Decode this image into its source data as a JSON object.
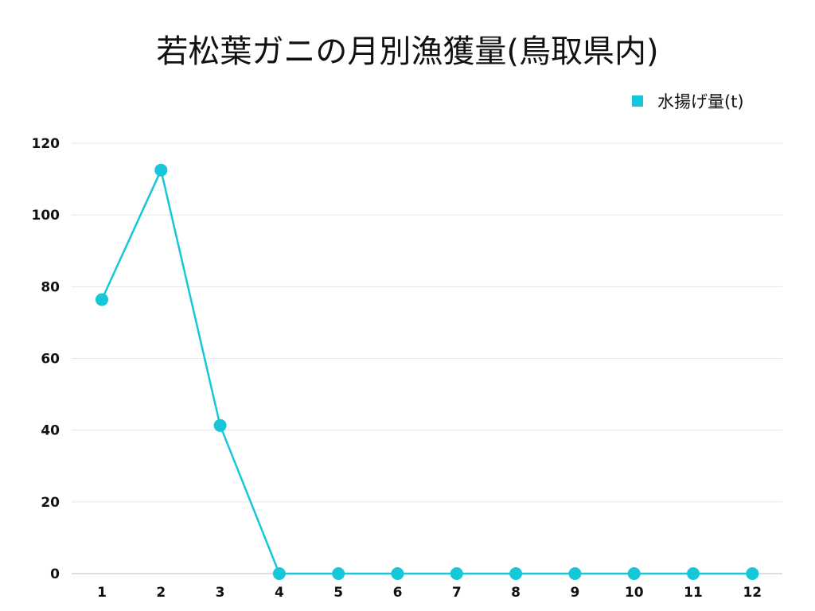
{
  "chart_data": {
    "type": "line",
    "title": "若松葉ガニの月別漁獲量(鳥取県内)",
    "xlabel": "",
    "ylabel": "",
    "categories": [
      "1",
      "2",
      "3",
      "4",
      "5",
      "6",
      "7",
      "8",
      "9",
      "10",
      "11",
      "12"
    ],
    "series": [
      {
        "name": "水揚げ量(t)",
        "color": "#16c7d9",
        "values": [
          76.4,
          112.5,
          41.3,
          0,
          0,
          0,
          0,
          0,
          0,
          0,
          0,
          0
        ]
      }
    ],
    "ylim": [
      0,
      120
    ],
    "yticks": [
      0,
      20,
      40,
      60,
      80,
      100,
      120
    ],
    "grid": true,
    "legend": "top-right"
  }
}
